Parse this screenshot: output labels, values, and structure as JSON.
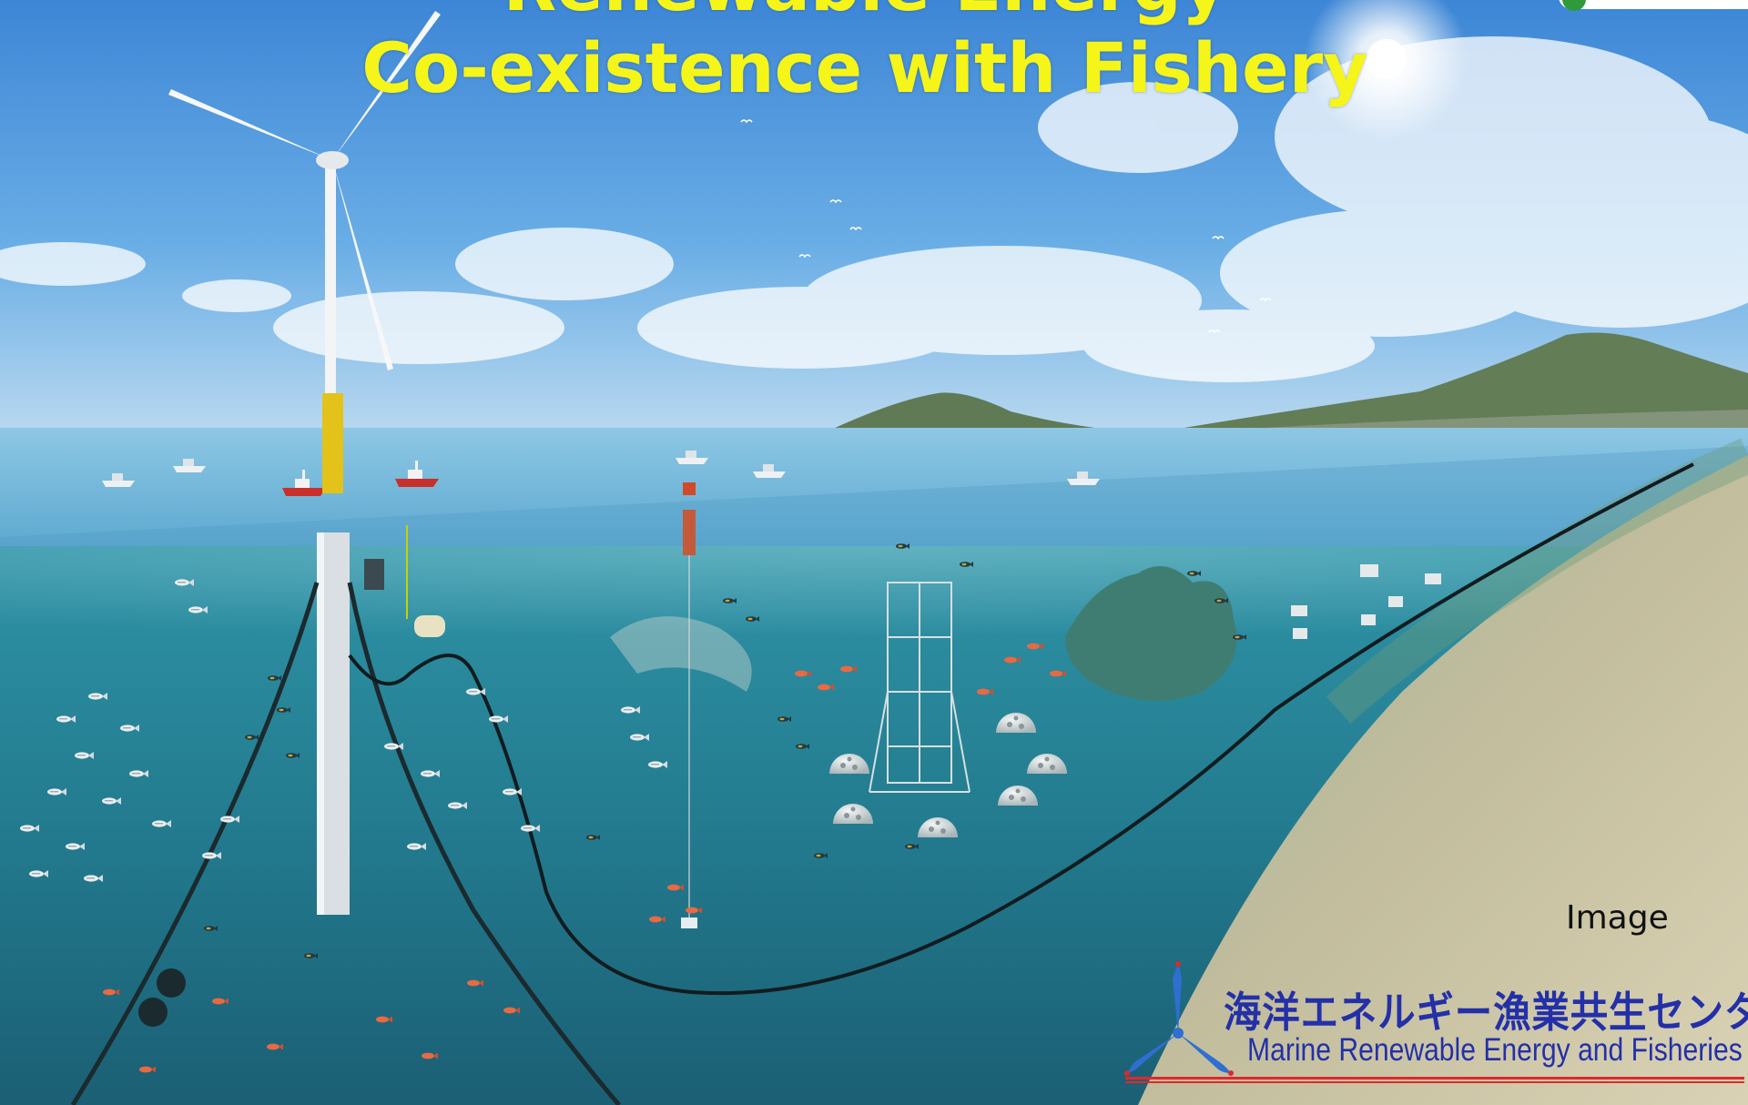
{
  "slide": {
    "title_line_1": "Renewable Energy",
    "title_line_2": "Co-existence with Fishery",
    "image_caption": "Image"
  },
  "center": {
    "name_ja": "海洋エネルギー漁業共生センター",
    "name_en": "Marine Renewable Energy and Fisheries",
    "logo_icon": "three-blade-turbine-icon"
  },
  "colors": {
    "title": "#f5f51a",
    "sky_top": "#4e95dc",
    "sea_surface": "#7fbfdc",
    "underwater": "#1f6f86",
    "seabed": "#b5b091",
    "turbine_float": "#e3c21a",
    "center_text": "#2430a8",
    "rule": "#e0282a"
  }
}
